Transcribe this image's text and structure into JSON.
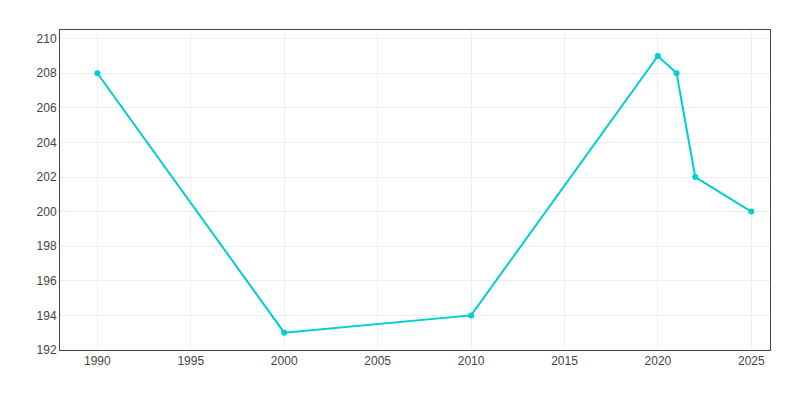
{
  "chart_data": {
    "type": "line",
    "x": [
      1990,
      2000,
      2010,
      2020,
      2021,
      2022,
      2025
    ],
    "values": [
      208,
      193,
      194,
      209,
      208,
      202,
      200
    ],
    "color": "#00CED1",
    "marker": "circle",
    "xlim": [
      1988,
      2026
    ],
    "ylim": [
      192,
      210.5
    ],
    "xticks": [
      1990,
      1995,
      2000,
      2005,
      2010,
      2015,
      2020,
      2025
    ],
    "yticks": [
      192,
      194,
      196,
      198,
      200,
      202,
      204,
      206,
      208,
      210
    ],
    "grid": true
  }
}
